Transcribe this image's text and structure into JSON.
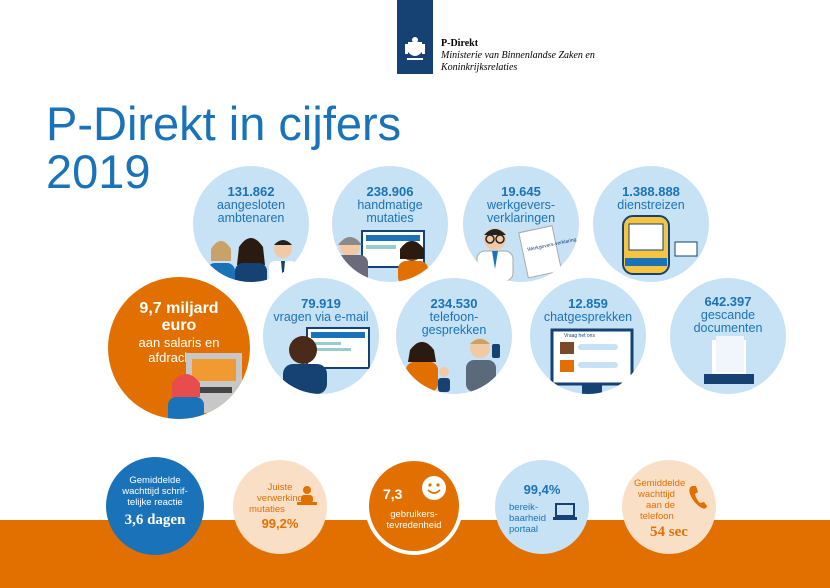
{
  "logo": {
    "line1": "P-Direkt",
    "line2": "Ministerie van Binnenlandse Zaken en",
    "line3": "Koninkrijksrelaties"
  },
  "title": {
    "line1": "P-Direkt in cijfers",
    "line2": "2019"
  },
  "stats": [
    {
      "value": "131.862",
      "label1": "aangesloten",
      "label2": "ambtenaren"
    },
    {
      "value": "238.906",
      "label1": "handmatige",
      "label2": "mutaties"
    },
    {
      "value": "19.645",
      "label1": "werkgevers-",
      "label2": "verklaringen"
    },
    {
      "value": "1.388.888",
      "label1": "dienstreizen"
    },
    {
      "value": "9,7 miljard",
      "value2": "euro",
      "label1": "aan salaris en",
      "label2": "afdrachten"
    },
    {
      "value": "79.919",
      "label1": "vragen via e-mail"
    },
    {
      "value": "234.530",
      "label1": "telefoon-",
      "label2": "gesprekken"
    },
    {
      "value": "12.859",
      "label1": "chatgesprekken"
    },
    {
      "value": "642.397",
      "label1": "gescande",
      "label2": "documenten"
    }
  ],
  "illustration_text": {
    "doc_label": "Werkgevers-verklaring",
    "chat_header": "Vraag het ons"
  },
  "kpis": [
    {
      "t1": "Gemiddelde",
      "t2": "wachttijd schrif-",
      "t3": "telijke reactie",
      "value": "3,6 dagen"
    },
    {
      "t1": "Juiste",
      "t2": "verwerking",
      "t3": "mutaties",
      "value": "99,2%"
    },
    {
      "value": "7,3",
      "t1": "gebruikers-",
      "t2": "tevredenheid"
    },
    {
      "value": "99,4%",
      "t1": "bereik-",
      "t2": "baarheid",
      "t3": "portaal"
    },
    {
      "t1": "Gemiddelde",
      "t2": "wachttijd",
      "t3": "aan de",
      "t4": "telefoon",
      "value": "54 sec"
    }
  ],
  "colors": {
    "blue": "#1a73b8",
    "light_blue": "#c6e2f4",
    "orange": "#e17000",
    "navy": "#154273",
    "peach": "#f9dfc6"
  }
}
